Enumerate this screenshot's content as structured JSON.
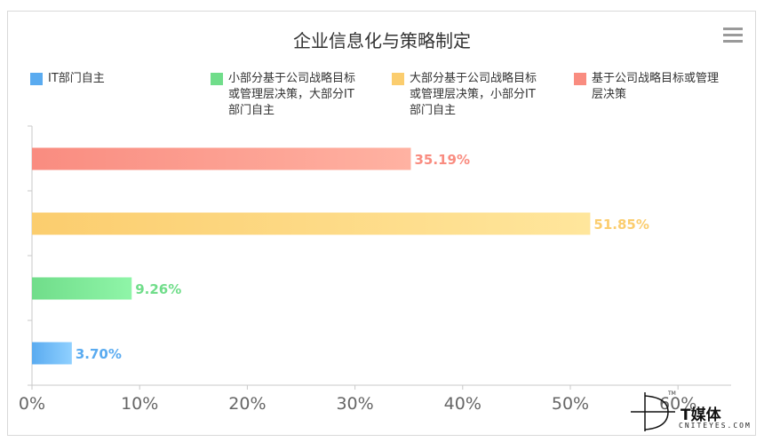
{
  "chart_data": {
    "type": "bar",
    "orientation": "horizontal",
    "title": "企业信息化与策略制定",
    "categories": [
      "IT部门自主",
      "小部分基于公司战略目标或管理层决策，大部分IT部门自主",
      "大部分基于公司战略目标或管理层决策，小部分IT部门自主",
      "基于公司战略目标或管理层决策"
    ],
    "values": [
      3.7,
      9.26,
      51.85,
      35.19
    ],
    "value_labels": [
      "3.70%",
      "9.26%",
      "51.85%",
      "35.19%"
    ],
    "colors": [
      "#5aabf0",
      "#70dd8a",
      "#fbcd6e",
      "#f98c80"
    ],
    "gradient_end_colors": [
      "#8fd0ff",
      "#8ff5a8",
      "#ffe69c",
      "#ffb2a2"
    ],
    "xlim": [
      0,
      65
    ],
    "xticks": [
      0,
      10,
      20,
      30,
      40,
      50,
      60
    ],
    "xtick_labels": [
      "0%",
      "10%",
      "20%",
      "30%",
      "40%",
      "50%",
      "60%"
    ],
    "xlabel": "",
    "ylabel": "",
    "grid": false,
    "legend_position": "top"
  },
  "legend": [
    {
      "lines": [
        "IT部门自主"
      ],
      "color": "#5aabf0"
    },
    {
      "lines": [
        "小部分基于公司战略目标",
        "或管理层决策，大部分IT",
        "部门自主"
      ],
      "color": "#70dd8a"
    },
    {
      "lines": [
        "大部分基于公司战略目标",
        "或管理层决策，小部分IT",
        "部门自主"
      ],
      "color": "#fbcd6e"
    },
    {
      "lines": [
        "基于公司战略目标或管理",
        "层决策"
      ],
      "color": "#f98c80"
    }
  ],
  "watermark": {
    "cn": "T媒体",
    "en": "CNITEYES.COM",
    "tm": "TM"
  },
  "menu_icon": "hamburger-menu-icon"
}
